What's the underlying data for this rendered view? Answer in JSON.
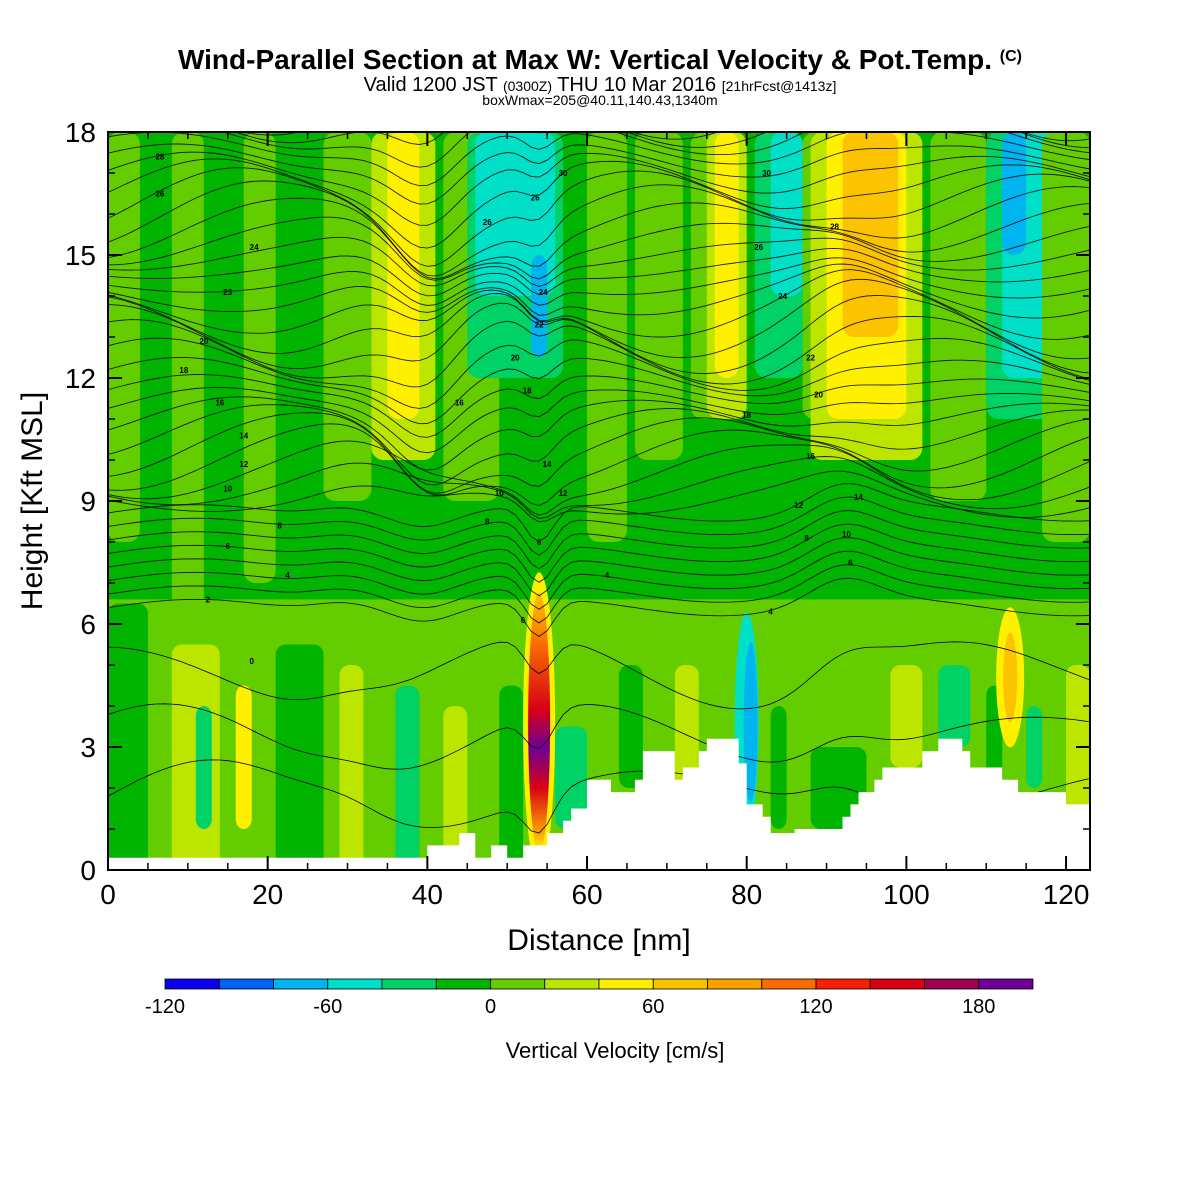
{
  "header": {
    "title": "Wind-Parallel Section at Max W: Vertical Velocity & Pot.Temp.",
    "title_tag": "(C)",
    "subtitle_a": "Valid 1200 JST",
    "subtitle_b": "(0300Z)",
    "subtitle_c": "THU 10 Mar 2016",
    "subtitle_d": "[21hrFcst@1413z]",
    "info": "boxWmax=205@40.11,140.43,1340m"
  },
  "chart_data": {
    "type": "heatmap",
    "xlabel": "Distance [nm]",
    "ylabel": "Height [Kft MSL]",
    "xlim": [
      0,
      123
    ],
    "ylim": [
      0,
      18
    ],
    "xticks": [
      0,
      20,
      40,
      60,
      80,
      100,
      120
    ],
    "yticks": [
      0,
      3,
      6,
      9,
      12,
      15,
      18
    ],
    "colorbar": {
      "label": "Vertical Velocity [cm/s]",
      "min": -120,
      "max": 200,
      "step": 20,
      "tick_values": [
        -120,
        -60,
        0,
        60,
        120,
        180
      ],
      "tick_labels": [
        "-120",
        "-60",
        "0",
        "60",
        "120",
        "180"
      ],
      "colors": [
        "#0c00f0",
        "#0062f2",
        "#00b4f0",
        "#00e0c8",
        "#00d266",
        "#00b400",
        "#64cd00",
        "#bce600",
        "#fff000",
        "#fcc300",
        "#fca000",
        "#f86c00",
        "#f81e00",
        "#d80014",
        "#a00050",
        "#6e0096"
      ]
    },
    "terrain": [
      [
        0,
        0.3
      ],
      [
        40,
        0.3
      ],
      [
        40,
        0.6
      ],
      [
        44,
        0.6
      ],
      [
        44,
        0.9
      ],
      [
        46,
        0.9
      ],
      [
        46,
        0.3
      ],
      [
        48,
        0.3
      ],
      [
        48,
        0.6
      ],
      [
        50,
        0.6
      ],
      [
        50,
        0.3
      ],
      [
        52,
        0.3
      ],
      [
        52,
        0.6
      ],
      [
        55,
        0.6
      ],
      [
        55,
        0.9
      ],
      [
        57,
        0.9
      ],
      [
        57,
        1.2
      ],
      [
        58,
        1.2
      ],
      [
        58,
        1.5
      ],
      [
        60,
        1.5
      ],
      [
        60,
        2.2
      ],
      [
        63,
        2.2
      ],
      [
        63,
        1.9
      ],
      [
        66,
        1.9
      ],
      [
        66,
        2.2
      ],
      [
        67,
        2.2
      ],
      [
        67,
        2.9
      ],
      [
        71,
        2.9
      ],
      [
        71,
        2.2
      ],
      [
        72,
        2.2
      ],
      [
        72,
        2.5
      ],
      [
        74,
        2.5
      ],
      [
        74,
        2.9
      ],
      [
        75,
        2.9
      ],
      [
        75,
        3.2
      ],
      [
        79,
        3.2
      ],
      [
        79,
        2.6
      ],
      [
        80,
        2.6
      ],
      [
        80,
        1.6
      ],
      [
        82,
        1.6
      ],
      [
        82,
        1.3
      ],
      [
        83,
        1.3
      ],
      [
        83,
        0.9
      ],
      [
        85,
        0.9
      ],
      [
        85,
        0.9
      ],
      [
        86,
        0.9
      ],
      [
        86,
        1.0
      ],
      [
        92,
        1.0
      ],
      [
        92,
        1.3
      ],
      [
        93,
        1.3
      ],
      [
        93,
        1.6
      ],
      [
        94,
        1.6
      ],
      [
        94,
        1.9
      ],
      [
        96,
        1.9
      ],
      [
        96,
        2.2
      ],
      [
        97,
        2.2
      ],
      [
        97,
        2.5
      ],
      [
        102,
        2.5
      ],
      [
        102,
        2.9
      ],
      [
        104,
        2.9
      ],
      [
        104,
        3.2
      ],
      [
        107,
        3.2
      ],
      [
        107,
        2.9
      ],
      [
        108,
        2.9
      ],
      [
        108,
        2.5
      ],
      [
        112,
        2.5
      ],
      [
        112,
        2.2
      ],
      [
        114,
        2.2
      ],
      [
        114,
        1.9
      ],
      [
        120,
        1.9
      ],
      [
        120,
        1.6
      ],
      [
        123,
        1.6
      ]
    ],
    "theta_labels": [
      {
        "x": 6.5,
        "y": 17.4,
        "text": "28"
      },
      {
        "x": 6.5,
        "y": 16.5,
        "text": "26"
      },
      {
        "x": 18.3,
        "y": 15.2,
        "text": "24"
      },
      {
        "x": 15,
        "y": 14.1,
        "text": "23"
      },
      {
        "x": 12,
        "y": 12.9,
        "text": "20"
      },
      {
        "x": 9.5,
        "y": 12.2,
        "text": "18"
      },
      {
        "x": 14,
        "y": 11.4,
        "text": "16"
      },
      {
        "x": 17,
        "y": 10.6,
        "text": "14"
      },
      {
        "x": 17,
        "y": 9.9,
        "text": "12"
      },
      {
        "x": 15,
        "y": 9.3,
        "text": "10"
      },
      {
        "x": 21.5,
        "y": 8.4,
        "text": "8"
      },
      {
        "x": 15,
        "y": 7.9,
        "text": "6"
      },
      {
        "x": 22.5,
        "y": 7.2,
        "text": "4"
      },
      {
        "x": 12.5,
        "y": 6.6,
        "text": "2"
      },
      {
        "x": 18,
        "y": 5.1,
        "text": "0"
      },
      {
        "x": 47.5,
        "y": 15.8,
        "text": "26"
      },
      {
        "x": 53.5,
        "y": 16.4,
        "text": "26"
      },
      {
        "x": 57,
        "y": 17.0,
        "text": "30"
      },
      {
        "x": 54.5,
        "y": 14.1,
        "text": "24"
      },
      {
        "x": 54,
        "y": 13.3,
        "text": "22"
      },
      {
        "x": 51,
        "y": 12.5,
        "text": "20"
      },
      {
        "x": 52.5,
        "y": 11.7,
        "text": "18"
      },
      {
        "x": 44,
        "y": 11.4,
        "text": "16"
      },
      {
        "x": 55,
        "y": 9.9,
        "text": "14"
      },
      {
        "x": 57,
        "y": 9.2,
        "text": "12"
      },
      {
        "x": 49,
        "y": 9.2,
        "text": "10"
      },
      {
        "x": 47.5,
        "y": 8.5,
        "text": "8"
      },
      {
        "x": 54,
        "y": 8.0,
        "text": "6"
      },
      {
        "x": 62.5,
        "y": 7.2,
        "text": "4"
      },
      {
        "x": 52,
        "y": 6.1,
        "text": "6"
      },
      {
        "x": 82.5,
        "y": 17.0,
        "text": "30"
      },
      {
        "x": 81.5,
        "y": 15.2,
        "text": "26"
      },
      {
        "x": 84.5,
        "y": 14.0,
        "text": "24"
      },
      {
        "x": 91,
        "y": 15.7,
        "text": "28"
      },
      {
        "x": 88,
        "y": 12.5,
        "text": "22"
      },
      {
        "x": 89,
        "y": 11.6,
        "text": "20"
      },
      {
        "x": 80,
        "y": 11.1,
        "text": "18"
      },
      {
        "x": 88,
        "y": 10.1,
        "text": "16"
      },
      {
        "x": 86.5,
        "y": 8.9,
        "text": "12"
      },
      {
        "x": 94,
        "y": 9.1,
        "text": "14"
      },
      {
        "x": 87.5,
        "y": 8.1,
        "text": "8"
      },
      {
        "x": 92.5,
        "y": 8.2,
        "text": "10"
      },
      {
        "x": 93,
        "y": 7.5,
        "text": "6"
      },
      {
        "x": 83,
        "y": 6.3,
        "text": "4"
      }
    ]
  }
}
